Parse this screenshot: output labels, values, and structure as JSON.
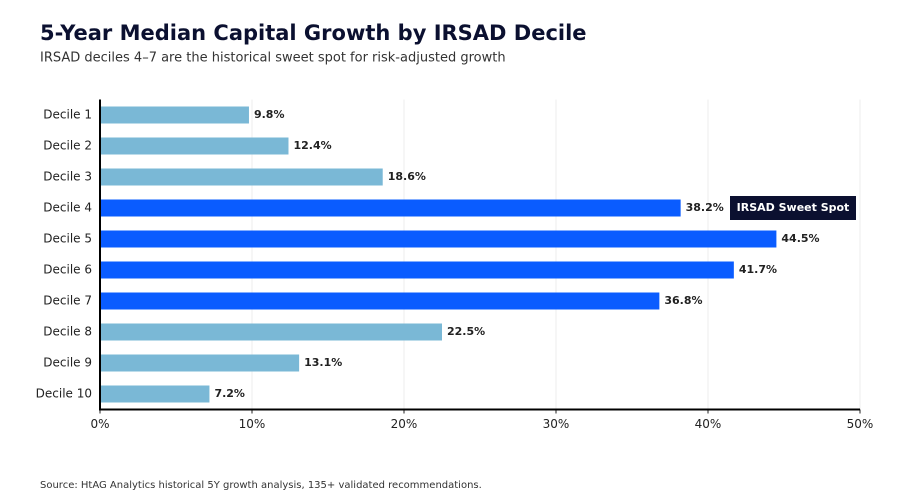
{
  "chart_data": {
    "type": "hbar",
    "title": "5-Year Median Capital Growth by IRSAD Decile",
    "subtitle": "IRSAD deciles 4–7 are the historical sweet spot for risk-adjusted growth",
    "categories": [
      "Decile 1",
      "Decile 2",
      "Decile 3",
      "Decile 4",
      "Decile 5",
      "Decile 6",
      "Decile 7",
      "Decile 8",
      "Decile 9",
      "Decile 10"
    ],
    "values": [
      9.8,
      12.4,
      18.6,
      38.2,
      44.5,
      41.7,
      36.8,
      22.5,
      13.1,
      7.2
    ],
    "value_labels": [
      "9.8%",
      "12.4%",
      "18.6%",
      "38.2%",
      "44.5%",
      "41.7%",
      "36.8%",
      "22.5%",
      "13.1%",
      "7.2%"
    ],
    "colors": [
      "#7ab8d6",
      "#7ab8d6",
      "#7ab8d6",
      "#0a5cff",
      "#0a5cff",
      "#0a5cff",
      "#0a5cff",
      "#7ab8d6",
      "#7ab8d6",
      "#7ab8d6"
    ],
    "xlim": [
      0,
      50
    ],
    "xticks": [
      {
        "value": 0,
        "label": "0%"
      },
      {
        "value": 10,
        "label": "10%"
      },
      {
        "value": 20,
        "label": "20%"
      },
      {
        "value": 30,
        "label": "30%"
      },
      {
        "value": 40,
        "label": "40%"
      },
      {
        "value": 50,
        "label": "50%"
      }
    ],
    "grid": true,
    "annotation": "IRSAD Sweet Spot",
    "source": "Source: HtAG Analytics historical 5Y growth analysis, 135+ validated recommendations."
  }
}
